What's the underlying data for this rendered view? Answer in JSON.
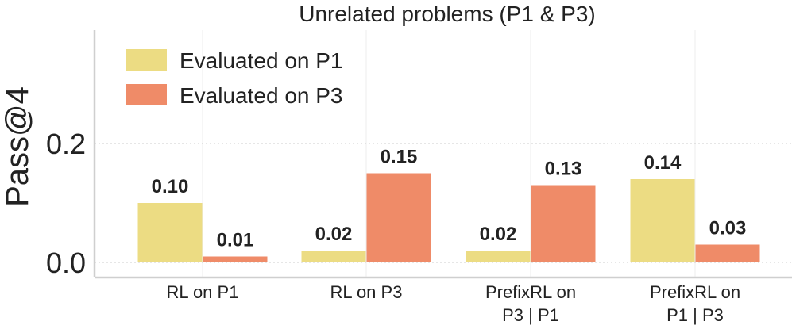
{
  "chart_data": {
    "type": "bar",
    "title": "Unrelated problems (P1 & P3)",
    "ylabel": "Pass@4",
    "xlabel": "",
    "ylim": [
      0,
      0.38
    ],
    "yticks": [
      0.0,
      0.2
    ],
    "ytick_labels": [
      "0.0",
      "0.2"
    ],
    "grid": true,
    "legend_position": "top-left",
    "categories": [
      [
        "RL on P1"
      ],
      [
        "RL on P3"
      ],
      [
        "PrefixRL on",
        "P3 | P1"
      ],
      [
        "PrefixRL on",
        "P1 | P3"
      ]
    ],
    "series": [
      {
        "name": "Evaluated on P1",
        "color": "#ecdc83",
        "values": [
          0.1,
          0.02,
          0.02,
          0.14
        ],
        "labels": [
          "0.10",
          "0.02",
          "0.02",
          "0.14"
        ]
      },
      {
        "name": "Evaluated on P3",
        "color": "#ef8b68",
        "values": [
          0.01,
          0.15,
          0.13,
          0.03
        ],
        "labels": [
          "0.01",
          "0.15",
          "0.13",
          "0.03"
        ]
      }
    ]
  }
}
